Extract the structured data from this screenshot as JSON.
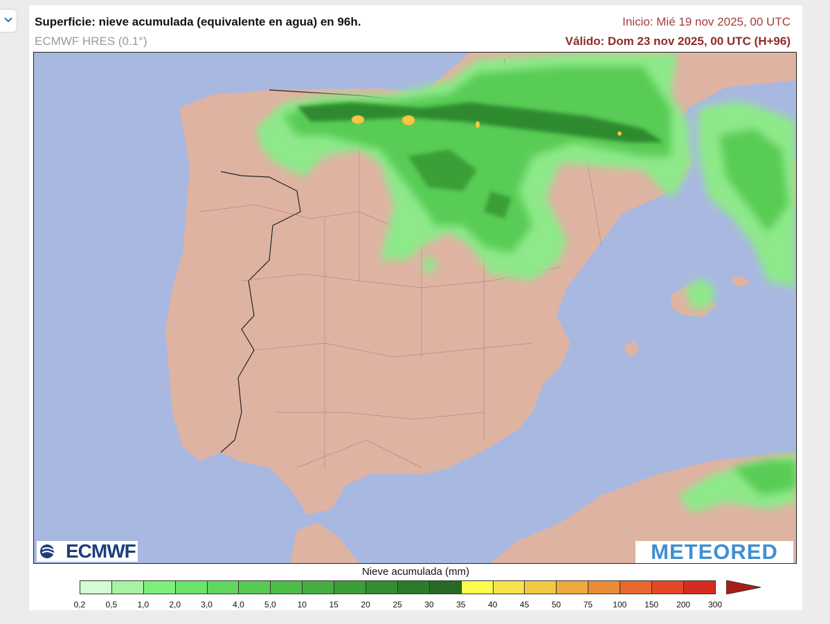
{
  "header": {
    "title": "Superficie: nieve acumulada (equivalente en agua) en 96h.",
    "model": "ECMWF HRES (0.1°)",
    "init": "Inicio: Mié 19 nov 2025, 00 UTC",
    "valid": "Válido: Dom 23 nov 2025, 00 UTC (H+96)"
  },
  "logos": {
    "ecmwf": "ECMWF",
    "meteored": "METEORED"
  },
  "legend": {
    "title": "Nieve acumulada (mm)",
    "ticks": [
      "0,2",
      "0,5",
      "1,0",
      "2,0",
      "3,0",
      "4,0",
      "5,0",
      "10",
      "15",
      "20",
      "25",
      "30",
      "35",
      "40",
      "45",
      "50",
      "75",
      "100",
      "150",
      "200",
      "300"
    ],
    "colors": [
      "#d4fbd4",
      "#a8f3a2",
      "#7ef07a",
      "#6ae466",
      "#5fd75a",
      "#56cb52",
      "#4dbd48",
      "#44af40",
      "#3b9f38",
      "#348d31",
      "#2c7b2a",
      "#276a24",
      "#fcfc4c",
      "#f8e24a",
      "#f2c844",
      "#eeaa3c",
      "#ea8c36",
      "#e6682e",
      "#e44826",
      "#d42c20",
      "#aa1c1a"
    ]
  },
  "map": {
    "ocean_color": "#a9b8e0",
    "land_color": "#dfb3a2",
    "snow_light": "#8ee98a",
    "snow_mid": "#58cc55",
    "snow_dark": "#2f8a2d",
    "snow_peak": "#f2c844"
  }
}
